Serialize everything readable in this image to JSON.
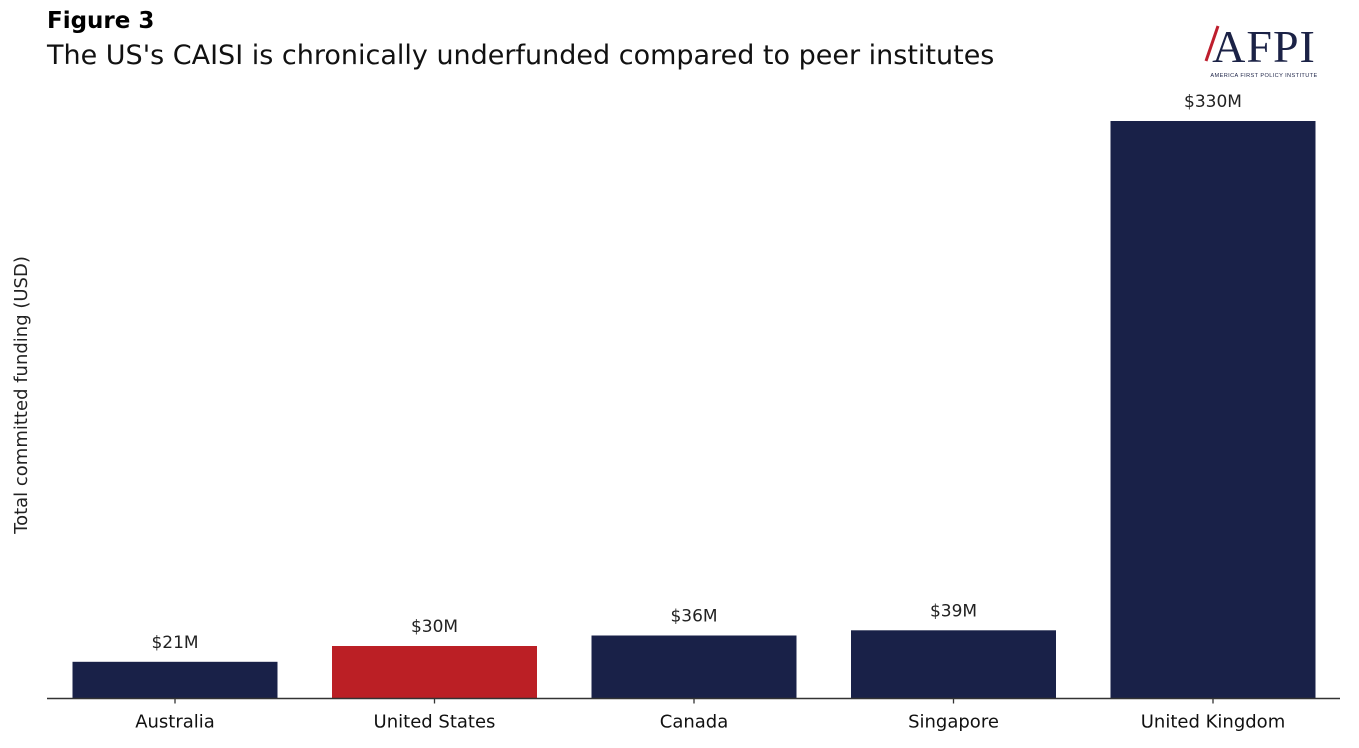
{
  "figure_label": "Figure 3",
  "logo": {
    "text": "AFPI",
    "subtext": "AMERICA FIRST POLICY INSTITUTE",
    "colors": {
      "navy": "#1B2246",
      "red": "#BE1E2D"
    }
  },
  "chart_data": {
    "type": "bar",
    "title": "The US's CAISI is chronically underfunded compared to peer institutes",
    "xlabel": "",
    "ylabel": "Total committed funding (USD)",
    "categories": [
      "Australia",
      "United States",
      "Canada",
      "Singapore",
      "United Kingdom"
    ],
    "values": [
      21,
      30,
      36,
      39,
      330
    ],
    "value_labels": [
      "$21M",
      "$30M",
      "$36M",
      "$39M",
      "$330M"
    ],
    "units": "millions USD",
    "ylim": [
      0,
      330
    ],
    "grid": false,
    "legend": "none",
    "colors": [
      "#192148",
      "#BB1F25",
      "#192148",
      "#192148",
      "#192148"
    ]
  }
}
